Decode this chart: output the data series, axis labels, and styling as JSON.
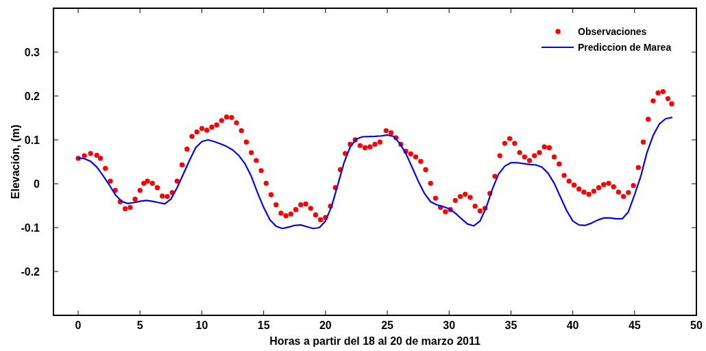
{
  "chart_data": {
    "type": "line",
    "xlabel": "Horas a partir del 18 al 20 de marzo 2011",
    "ylabel": "Elevación, (m)",
    "xlim": [
      -2,
      50
    ],
    "ylim": [
      -0.3,
      0.4
    ],
    "xticks": [
      0,
      5,
      10,
      15,
      20,
      25,
      30,
      35,
      40,
      45,
      50
    ],
    "yticks": [
      -0.2,
      -0.1,
      0,
      0.1,
      0.2,
      0.3
    ],
    "grid": false,
    "legend": "top right",
    "series": [
      {
        "name": "Observaciones",
        "type": "scatter",
        "marker": "circle",
        "color": "#ff0000",
        "x": [
          0,
          0.5,
          1,
          1.5,
          1.8,
          2.2,
          2.6,
          3,
          3.4,
          3.8,
          4.2,
          4.6,
          5,
          5.3,
          5.6,
          6,
          6.4,
          6.8,
          7.2,
          7.6,
          8,
          8.4,
          8.8,
          9.2,
          9.6,
          10,
          10.4,
          10.8,
          11.2,
          11.6,
          12,
          12.4,
          12.8,
          13.2,
          13.6,
          14,
          14.4,
          14.8,
          15.2,
          15.6,
          16,
          16.4,
          16.8,
          17.2,
          17.6,
          18,
          18.4,
          18.8,
          19.2,
          19.6,
          20,
          20.4,
          20.8,
          21.2,
          21.6,
          22,
          22.4,
          22.8,
          23.2,
          23.6,
          24,
          24.4,
          24.9,
          25.3,
          25.7,
          26.1,
          26.5,
          26.9,
          27.3,
          27.7,
          28.1,
          28.5,
          28.9,
          29.3,
          29.7,
          30.1,
          30.5,
          30.9,
          31.3,
          31.7,
          32.1,
          32.5,
          32.9,
          33.3,
          33.7,
          34.1,
          34.5,
          34.9,
          35.3,
          35.7,
          36.1,
          36.5,
          36.9,
          37.3,
          37.7,
          38.1,
          38.5,
          38.9,
          39.3,
          39.7,
          40.1,
          40.5,
          40.9,
          41.3,
          41.7,
          42.1,
          42.5,
          42.9,
          43.3,
          43.7,
          44.1,
          44.5,
          44.9,
          45.3,
          45.7,
          46.1,
          46.5,
          46.9,
          47.3,
          47.7,
          48
        ],
        "values": [
          0.058,
          0.064,
          0.069,
          0.065,
          0.058,
          0.035,
          0.006,
          -0.015,
          -0.041,
          -0.057,
          -0.054,
          -0.035,
          -0.015,
          0.001,
          0.006,
          0.001,
          -0.009,
          -0.028,
          -0.029,
          -0.02,
          0.006,
          0.043,
          0.079,
          0.108,
          0.118,
          0.126,
          0.122,
          0.129,
          0.134,
          0.144,
          0.152,
          0.151,
          0.139,
          0.121,
          0.095,
          0.071,
          0.053,
          0.03,
          0.001,
          -0.025,
          -0.048,
          -0.067,
          -0.073,
          -0.069,
          -0.059,
          -0.048,
          -0.046,
          -0.056,
          -0.071,
          -0.082,
          -0.077,
          -0.051,
          -0.009,
          0.032,
          0.069,
          0.09,
          0.1,
          0.087,
          0.082,
          0.084,
          0.09,
          0.095,
          0.121,
          0.116,
          0.105,
          0.09,
          0.074,
          0.068,
          0.061,
          0.051,
          0.032,
          0.001,
          -0.033,
          -0.054,
          -0.064,
          -0.059,
          -0.038,
          -0.029,
          -0.024,
          -0.031,
          -0.051,
          -0.062,
          -0.056,
          -0.022,
          0.017,
          0.064,
          0.092,
          0.103,
          0.092,
          0.071,
          0.061,
          0.053,
          0.064,
          0.071,
          0.084,
          0.082,
          0.061,
          0.045,
          0.019,
          0.006,
          -0.003,
          -0.012,
          -0.019,
          -0.024,
          -0.017,
          -0.009,
          -0.002,
          0.001,
          -0.007,
          -0.019,
          -0.029,
          -0.02,
          -0.004,
          0.037,
          0.095,
          0.147,
          0.189,
          0.207,
          0.21,
          0.194,
          0.182
        ]
      },
      {
        "name": "Prediccion de Marea",
        "line_style": "solid",
        "color": "#0000ff",
        "x": [
          0,
          0.5,
          1,
          1.5,
          2,
          2.5,
          3,
          3.5,
          4,
          4.5,
          5,
          5.5,
          6,
          6.5,
          7,
          7.5,
          8,
          8.5,
          9,
          9.5,
          10,
          10.5,
          11,
          11.5,
          12,
          12.5,
          13,
          13.5,
          14,
          14.5,
          15,
          15.5,
          16,
          16.5,
          17,
          17.5,
          18,
          18.5,
          19,
          19.5,
          20,
          20.5,
          21,
          21.5,
          22,
          22.5,
          23,
          24,
          24.5,
          25,
          25.5,
          26,
          26.5,
          27,
          27.5,
          28,
          28.5,
          29,
          29.5,
          30,
          30.5,
          31,
          31.5,
          32,
          32.5,
          33,
          33.5,
          34,
          34.5,
          35,
          35.5,
          36,
          36.5,
          37,
          37.5,
          38,
          38.5,
          39,
          39.5,
          40,
          40.5,
          41,
          41.5,
          42,
          42.5,
          43,
          43.5,
          44,
          44.5,
          45,
          45.5,
          46,
          46.5,
          47,
          47.5,
          48
        ],
        "values": [
          0.059,
          0.057,
          0.051,
          0.038,
          0.019,
          -0.002,
          -0.025,
          -0.04,
          -0.045,
          -0.043,
          -0.04,
          -0.038,
          -0.04,
          -0.043,
          -0.046,
          -0.035,
          -0.009,
          0.022,
          0.053,
          0.082,
          0.096,
          0.1,
          0.096,
          0.091,
          0.085,
          0.077,
          0.064,
          0.045,
          0.017,
          -0.02,
          -0.054,
          -0.082,
          -0.097,
          -0.102,
          -0.099,
          -0.095,
          -0.094,
          -0.098,
          -0.102,
          -0.1,
          -0.085,
          -0.051,
          -0.002,
          0.048,
          0.084,
          0.102,
          0.107,
          0.108,
          0.109,
          0.111,
          0.108,
          0.092,
          0.069,
          0.038,
          0.006,
          -0.022,
          -0.041,
          -0.048,
          -0.052,
          -0.057,
          -0.067,
          -0.08,
          -0.092,
          -0.096,
          -0.085,
          -0.054,
          -0.012,
          0.022,
          0.04,
          0.048,
          0.048,
          0.046,
          0.044,
          0.043,
          0.038,
          0.024,
          0.001,
          -0.03,
          -0.061,
          -0.085,
          -0.094,
          -0.095,
          -0.09,
          -0.083,
          -0.078,
          -0.078,
          -0.08,
          -0.08,
          -0.064,
          -0.025,
          0.017,
          0.071,
          0.11,
          0.136,
          0.148,
          0.151
        ]
      }
    ]
  }
}
